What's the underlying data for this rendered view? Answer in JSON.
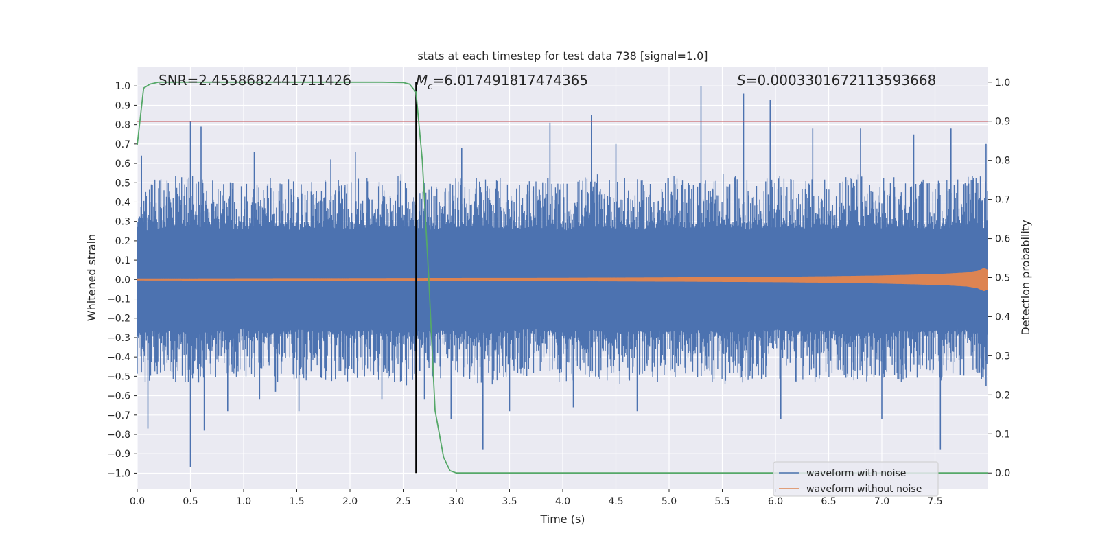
{
  "chart_data": {
    "type": "line",
    "title": "stats at each timestep for test data 738 [signal=1.0]",
    "xlabel": "Time (s)",
    "ylabel": "Whitened strain",
    "ylabel_right": "Detection probability",
    "xlim": [
      0.0,
      8.0
    ],
    "ylim": [
      -1.08,
      1.1
    ],
    "ylim_right": [
      -0.04,
      1.04
    ],
    "x_ticks": [
      0.0,
      0.5,
      1.0,
      1.5,
      2.0,
      2.5,
      3.0,
      3.5,
      4.0,
      4.5,
      5.0,
      5.5,
      6.0,
      6.5,
      7.0,
      7.5
    ],
    "x_tick_labels": [
      "0.0",
      "0.5",
      "1.0",
      "1.5",
      "2.0",
      "2.5",
      "3.0",
      "3.5",
      "4.0",
      "4.5",
      "5.0",
      "5.5",
      "6.0",
      "6.5",
      "7.0",
      "7.5"
    ],
    "y_ticks": [
      1.0,
      0.9,
      0.8,
      0.7,
      0.6,
      0.5,
      0.4,
      0.3,
      0.2,
      0.1,
      0.0,
      -0.1,
      -0.2,
      -0.3,
      -0.4,
      -0.5,
      -0.6,
      -0.7,
      -0.8,
      -0.9,
      -1.0
    ],
    "y_tick_labels": [
      "1.0",
      "0.9",
      "0.8",
      "0.7",
      "0.6",
      "0.5",
      "0.4",
      "0.3",
      "0.2",
      "0.1",
      "0.0",
      "−0.1",
      "−0.2",
      "−0.3",
      "−0.4",
      "−0.5",
      "−0.6",
      "−0.7",
      "−0.8",
      "−0.9",
      "−1.0"
    ],
    "y_ticks_right": [
      1.0,
      0.9,
      0.8,
      0.7,
      0.6,
      0.5,
      0.4,
      0.3,
      0.2,
      0.1,
      0.0
    ],
    "y_tick_labels_right": [
      "1.0",
      "0.9",
      "0.8",
      "0.7",
      "0.6",
      "0.5",
      "0.4",
      "0.3",
      "0.2",
      "0.1",
      "0.0"
    ],
    "annotations": {
      "snr": "SNR=2.4558682441711426",
      "mc_symbol": "M",
      "mc_subscript": "c",
      "mc_value": "=6.017491817474365",
      "s_symbol": "S",
      "s_value": "=0.0003301672113593668"
    },
    "threshold": {
      "value": 0.9,
      "axis": "right",
      "color": "#c44e52"
    },
    "detection_time": {
      "x": 2.62,
      "color": "#000000"
    },
    "noise_envelope": {
      "x": [
        0.0,
        0.25,
        0.5,
        0.75,
        1.0,
        1.25,
        1.5,
        1.75,
        2.0,
        2.25,
        2.5,
        2.75,
        3.0,
        3.25,
        3.5,
        3.75,
        4.0,
        4.25,
        4.5,
        4.75,
        5.0,
        5.25,
        5.5,
        5.75,
        6.0,
        6.25,
        6.5,
        6.75,
        7.0,
        7.25,
        7.5,
        7.75,
        8.0
      ],
      "core_upper": [
        0.45,
        0.48,
        0.5,
        0.48,
        0.47,
        0.5,
        0.46,
        0.49,
        0.47,
        0.48,
        0.5,
        0.47,
        0.48,
        0.5,
        0.47,
        0.49,
        0.46,
        0.5,
        0.48,
        0.47,
        0.49,
        0.48,
        0.5,
        0.47,
        0.49,
        0.48,
        0.47,
        0.5,
        0.48,
        0.49,
        0.47,
        0.5,
        0.48
      ],
      "core_lower": [
        -0.5,
        -0.47,
        -0.5,
        -0.48,
        -0.46,
        -0.5,
        -0.47,
        -0.49,
        -0.48,
        -0.47,
        -0.5,
        -0.48,
        -0.47,
        -0.5,
        -0.48,
        -0.46,
        -0.49,
        -0.47,
        -0.5,
        -0.48,
        -0.49,
        -0.47,
        -0.5,
        -0.48,
        -0.47,
        -0.49,
        -0.48,
        -0.5,
        -0.47,
        -0.49,
        -0.48,
        -0.47,
        -0.5
      ],
      "spikes": [
        [
          0.04,
          0.64
        ],
        [
          0.1,
          -0.77
        ],
        [
          0.5,
          0.82
        ],
        [
          0.5,
          -0.97
        ],
        [
          0.6,
          0.79
        ],
        [
          0.63,
          -0.78
        ],
        [
          0.85,
          -0.68
        ],
        [
          1.1,
          0.66
        ],
        [
          1.15,
          -0.62
        ],
        [
          1.3,
          -0.58
        ],
        [
          1.52,
          -0.68
        ],
        [
          1.82,
          0.62
        ],
        [
          2.05,
          0.66
        ],
        [
          2.3,
          -0.62
        ],
        [
          2.7,
          -0.62
        ],
        [
          2.95,
          -0.72
        ],
        [
          3.05,
          0.68
        ],
        [
          3.25,
          -0.88
        ],
        [
          3.5,
          -0.68
        ],
        [
          3.88,
          0.81
        ],
        [
          4.1,
          -0.66
        ],
        [
          4.27,
          0.85
        ],
        [
          4.5,
          0.7
        ],
        [
          4.7,
          -0.68
        ],
        [
          5.3,
          1.0
        ],
        [
          5.7,
          0.96
        ],
        [
          5.95,
          0.93
        ],
        [
          6.05,
          -0.72
        ],
        [
          6.35,
          0.78
        ],
        [
          6.8,
          0.78
        ],
        [
          7.0,
          -0.72
        ],
        [
          7.3,
          0.75
        ],
        [
          7.55,
          -0.88
        ],
        [
          7.65,
          0.78
        ],
        [
          7.98,
          0.7
        ],
        [
          7.98,
          -0.55
        ]
      ]
    },
    "series": [
      {
        "name": "waveform with noise",
        "color": "#4c72b0",
        "axis": "left",
        "style": "dense-noise"
      },
      {
        "name": "waveform without noise",
        "color": "#dd8452",
        "axis": "left",
        "style": "chirp",
        "x": [
          0.0,
          1.0,
          2.0,
          3.0,
          4.0,
          5.0,
          6.0,
          6.5,
          7.0,
          7.3,
          7.6,
          7.8,
          7.9,
          7.96,
          8.0
        ],
        "amplitude": [
          0.005,
          0.006,
          0.007,
          0.008,
          0.009,
          0.011,
          0.014,
          0.017,
          0.021,
          0.025,
          0.03,
          0.036,
          0.045,
          0.06,
          0.05
        ]
      },
      {
        "name": "detection probability",
        "color": "#55a868",
        "axis": "right",
        "style": "line",
        "x": [
          0.0,
          0.06,
          0.12,
          0.2,
          0.5,
          1.0,
          1.5,
          2.0,
          2.3,
          2.5,
          2.56,
          2.62,
          2.68,
          2.74,
          2.8,
          2.88,
          2.94,
          3.0,
          3.5,
          4.0,
          5.0,
          6.0,
          7.0,
          8.0
        ],
        "y": [
          0.84,
          0.985,
          0.995,
          1.0,
          1.0,
          1.0,
          1.0,
          1.0,
          1.0,
          0.999,
          0.995,
          0.975,
          0.8,
          0.5,
          0.16,
          0.04,
          0.006,
          0.0,
          0.0,
          0.0,
          0.0,
          0.0,
          0.0,
          0.0
        ]
      }
    ],
    "legend": {
      "location": "lower-right",
      "entries": [
        "waveform with noise",
        "waveform without noise"
      ]
    },
    "background_color": "#eaeaf2",
    "grid": true
  }
}
